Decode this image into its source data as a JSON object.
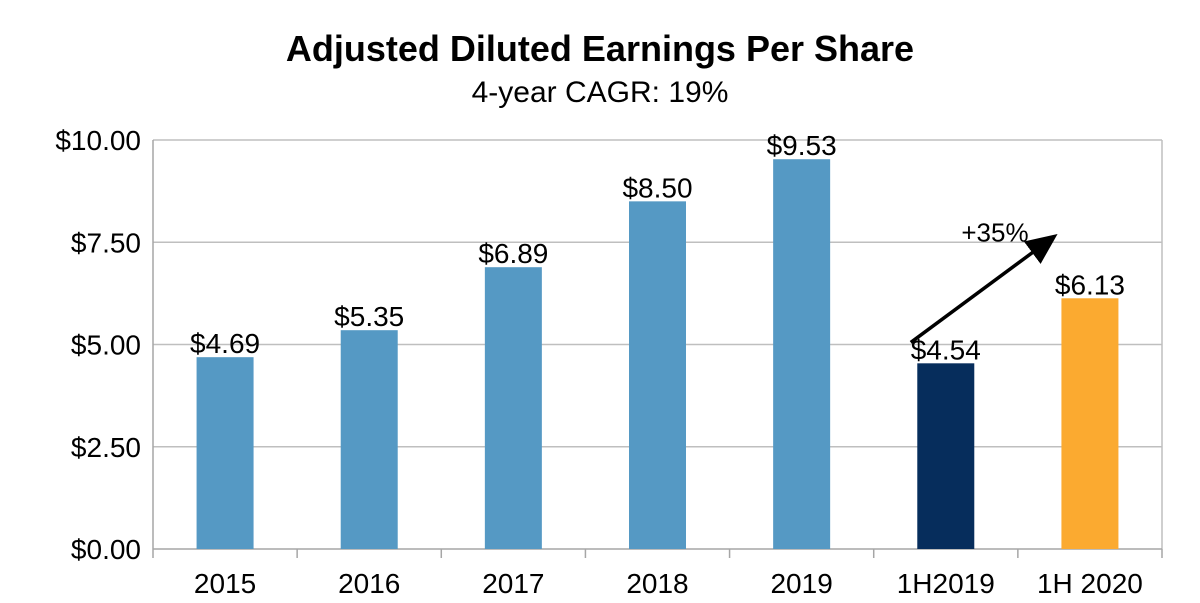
{
  "chart_data": {
    "type": "bar",
    "title": "Adjusted Diluted Earnings Per Share",
    "subtitle": "4-year CAGR:  19%",
    "categories": [
      "2015",
      "2016",
      "2017",
      "2018",
      "2019",
      "1H2019",
      "1H 2020"
    ],
    "values": [
      4.69,
      5.35,
      6.89,
      8.5,
      9.53,
      4.54,
      6.13
    ],
    "data_labels": [
      "$4.69",
      "$5.35",
      "$6.89",
      "$8.50",
      "$9.53",
      "$4.54",
      "$6.13"
    ],
    "bar_colors": [
      "#5599c4",
      "#5599c4",
      "#5599c4",
      "#5599c4",
      "#5599c4",
      "#062d5c",
      "#fbaa30"
    ],
    "ylim": [
      0,
      10
    ],
    "yticks": [
      0,
      2.5,
      5,
      7.5,
      10
    ],
    "ytick_labels": [
      "$0.00",
      "$2.50",
      "$5.00",
      "$7.50",
      "$10.00"
    ],
    "grid": true,
    "xlabel": "",
    "ylabel": "",
    "annotation": {
      "text": "+35%",
      "from_category": "1H2019",
      "to_category": "1H 2020"
    }
  },
  "colors": {
    "grid": "#bfbfbf",
    "axis": "#a6a6a6",
    "text": "#000000"
  }
}
